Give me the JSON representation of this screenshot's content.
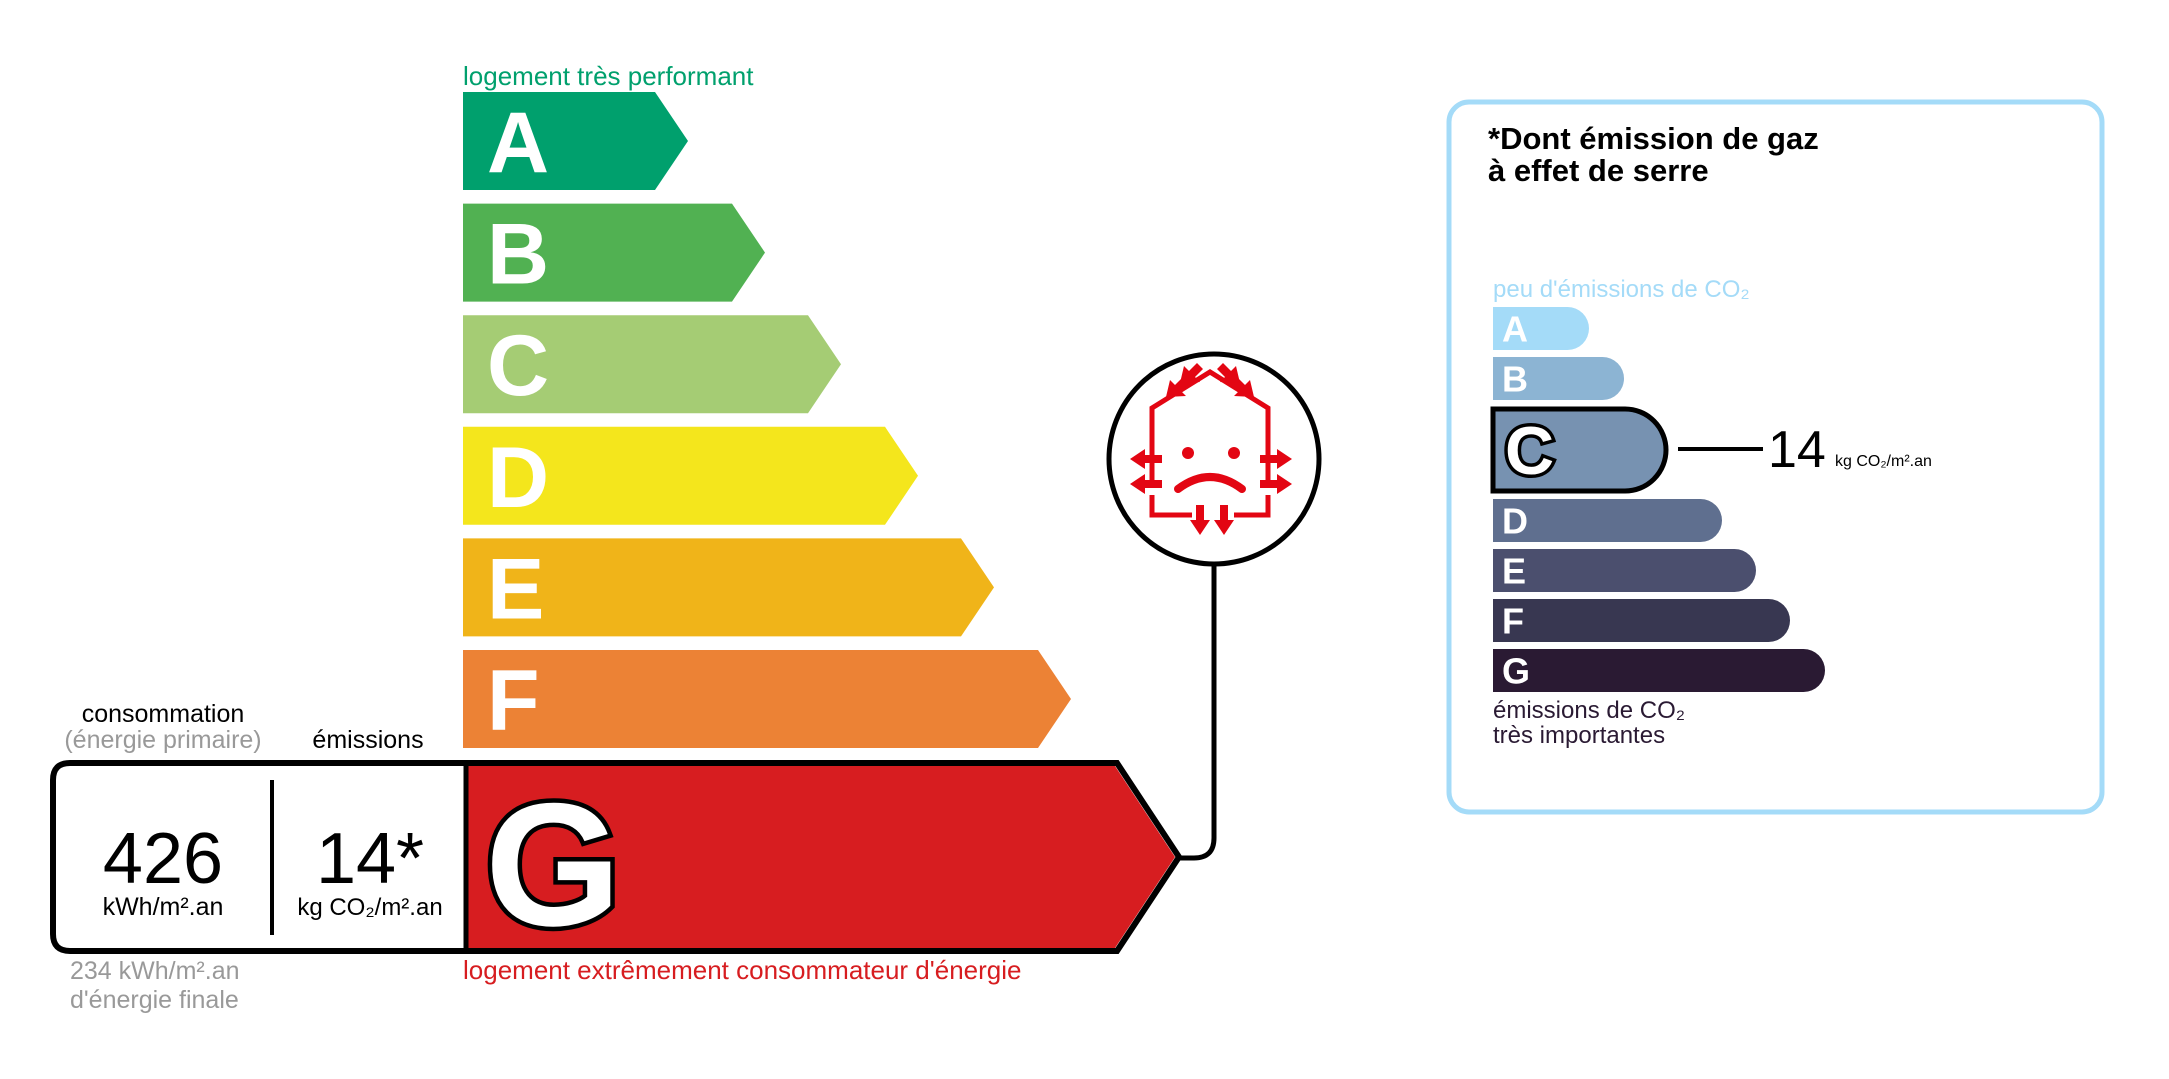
{
  "dpe": {
    "top_label": "logement très performant",
    "bottom_label": "logement extrêmement consommateur d'énergie",
    "classes": [
      {
        "letter": "A",
        "color": "#00a06d"
      },
      {
        "letter": "B",
        "color": "#51b152"
      },
      {
        "letter": "C",
        "color": "#a5cc74"
      },
      {
        "letter": "D",
        "color": "#f4e61c"
      },
      {
        "letter": "E",
        "color": "#f0b419"
      },
      {
        "letter": "F",
        "color": "#ec8235"
      },
      {
        "letter": "G",
        "color": "#d71d20"
      }
    ],
    "current_class": "G",
    "consumption_header": "consommation",
    "consumption_subheader": "(énergie primaire)",
    "emissions_header": "émissions",
    "consumption_value": "426",
    "consumption_unit": "kWh/m².an",
    "emissions_value": "14*",
    "emissions_unit": "kg CO₂/m².an",
    "final_energy_value": "234 kWh/m².an",
    "final_energy_label": "d'énergie finale",
    "icon": "house-heat-loss-sad-icon"
  },
  "ges": {
    "title_line1": "*Dont émission de gaz",
    "title_line2": "à effet de serre",
    "top_label": "peu d'émissions de CO₂",
    "bottom_label_line1": "émissions de CO₂",
    "bottom_label_line2": "très importantes",
    "classes": [
      {
        "letter": "A",
        "color": "#a4dbf8"
      },
      {
        "letter": "B",
        "color": "#8cb4d3"
      },
      {
        "letter": "C",
        "color": "#7792b1"
      },
      {
        "letter": "D",
        "color": "#5f6f8f"
      },
      {
        "letter": "E",
        "color": "#4b4f6e"
      },
      {
        "letter": "F",
        "color": "#383751"
      },
      {
        "letter": "G",
        "color": "#2a1a33"
      }
    ],
    "current_class": "C",
    "value": "14",
    "unit": "kg CO₂/m².an",
    "border_color": "#a4dbf8"
  }
}
